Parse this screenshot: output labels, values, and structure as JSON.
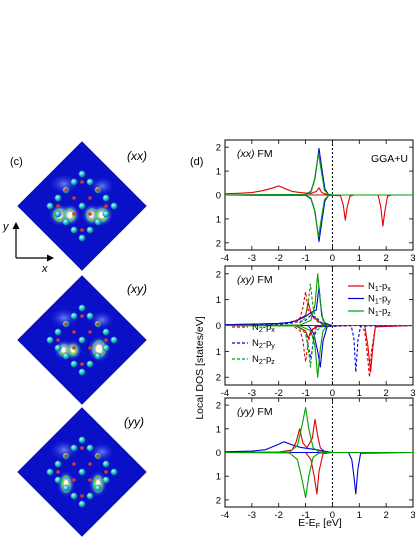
{
  "figure": {
    "panel_c_label": "(c)",
    "panel_d_label": "(d)",
    "maps": [
      {
        "label": "(xx)"
      },
      {
        "label": "(xy)"
      },
      {
        "label": "(yy)"
      }
    ],
    "axes_arrows": {
      "y": "y",
      "x": "x"
    },
    "colors": {
      "map_bg": "#0a10c8",
      "atom_cyan": "#22c4d8",
      "atom_red": "#d43a2a",
      "contour_green": "#3adc3a"
    }
  },
  "dos": {
    "ylabel": "Local DOS [states/eV]",
    "xlabel": "E-E",
    "xlabel_sub": "F",
    "xlabel_unit": " [eV]",
    "method": "GGA+U",
    "x_ticks": [
      "-4",
      "-3",
      "-2",
      "-1",
      "0",
      "1",
      "2",
      "3"
    ],
    "y_ticks": [
      "2",
      "1",
      "0",
      "1",
      "2"
    ],
    "legend_n1": [
      {
        "base": "N",
        "sub1": "1",
        "orb": "-p",
        "sub2": "x",
        "color": "#e00000"
      },
      {
        "base": "N",
        "sub1": "1",
        "orb": "-p",
        "sub2": "y",
        "color": "#0000dd"
      },
      {
        "base": "N",
        "sub1": "1",
        "orb": "-p",
        "sub2": "z",
        "color": "#00a000"
      }
    ],
    "legend_n2": [
      {
        "base": "N",
        "sub1": "2",
        "orb": "-p",
        "sub2": "x",
        "color": "#e00000"
      },
      {
        "base": "N",
        "sub1": "2",
        "orb": "-p",
        "sub2": "y",
        "color": "#0000dd"
      },
      {
        "base": "N",
        "sub1": "2",
        "orb": "-p",
        "sub2": "z",
        "color": "#00a000"
      }
    ]
  },
  "chart_data": [
    {
      "type": "line",
      "title": "(xx) FM",
      "xlim": [
        -4,
        3
      ],
      "ylim": [
        -2.3,
        2.3
      ],
      "series": [
        {
          "name": "N1-px",
          "color": "#e00000",
          "dash": false,
          "spin": "up",
          "x": [
            -4,
            -3.5,
            -3,
            -2.6,
            -2.2,
            -2.0,
            -1.8,
            -1.5,
            -1.2,
            -1.0,
            -0.8,
            -0.6,
            -0.5,
            -0.4,
            -0.2,
            0,
            3
          ],
          "y": [
            0.05,
            0.07,
            0.1,
            0.18,
            0.3,
            0.38,
            0.28,
            0.15,
            0.1,
            0.08,
            0.06,
            0.15,
            0.3,
            0.1,
            0.02,
            0,
            0
          ]
        },
        {
          "name": "N1-px",
          "color": "#e00000",
          "dash": false,
          "spin": "down",
          "x": [
            -4,
            -0.3,
            0.3,
            0.4,
            0.48,
            0.55,
            0.65,
            0.8,
            1.7,
            1.8,
            1.88,
            1.95,
            2.05,
            2.2,
            3
          ],
          "y": [
            0,
            0,
            0.03,
            0.4,
            1.05,
            0.5,
            0.05,
            0,
            0,
            0.5,
            1.3,
            0.7,
            0.05,
            0,
            0
          ]
        },
        {
          "name": "N1-py",
          "color": "#0000dd",
          "dash": false,
          "spin": "up",
          "x": [
            -4,
            -1.0,
            -0.8,
            -0.65,
            -0.5,
            -0.38,
            -0.28,
            -0.15,
            0,
            3
          ],
          "y": [
            0,
            0.02,
            0.15,
            0.7,
            1.95,
            1.0,
            0.25,
            0.03,
            0,
            0
          ]
        },
        {
          "name": "N1-py",
          "color": "#0000dd",
          "dash": false,
          "spin": "down",
          "x": [
            -4,
            -1.0,
            -0.8,
            -0.65,
            -0.5,
            -0.38,
            -0.28,
            -0.15,
            0,
            3
          ],
          "y": [
            0,
            0.02,
            0.15,
            0.7,
            1.95,
            1.0,
            0.25,
            0.03,
            0,
            0
          ]
        },
        {
          "name": "N1-pz",
          "color": "#00a000",
          "dash": false,
          "spin": "up",
          "x": [
            -4,
            -1.0,
            -0.8,
            -0.67,
            -0.52,
            -0.4,
            -0.3,
            -0.15,
            0,
            3
          ],
          "y": [
            0,
            0.02,
            0.12,
            0.6,
            1.75,
            0.9,
            0.2,
            0.03,
            0,
            0
          ]
        },
        {
          "name": "N1-pz",
          "color": "#00a000",
          "dash": false,
          "spin": "down",
          "x": [
            -4,
            -1.0,
            -0.8,
            -0.67,
            -0.52,
            -0.4,
            -0.3,
            -0.15,
            0,
            3
          ],
          "y": [
            0,
            0.02,
            0.12,
            0.6,
            1.75,
            0.9,
            0.2,
            0.03,
            0,
            0
          ]
        }
      ]
    },
    {
      "type": "line",
      "title": "(xy) FM",
      "xlim": [
        -4,
        3
      ],
      "ylim": [
        -2.3,
        2.3
      ],
      "series": [
        {
          "name": "N1-px",
          "color": "#e00000",
          "dash": false,
          "spin": "up",
          "x": [
            -4,
            -3,
            -2,
            -1.6,
            -1.3,
            -1.0,
            -0.9,
            -0.8,
            -0.7,
            -0.5,
            -0.3,
            0,
            3
          ],
          "y": [
            0.03,
            0.05,
            0.08,
            0.12,
            0.2,
            0.4,
            0.9,
            0.5,
            0.3,
            0.15,
            0.05,
            0,
            0
          ]
        },
        {
          "name": "N1-px",
          "color": "#e00000",
          "dash": false,
          "spin": "down",
          "x": [
            -4,
            -1.4,
            -1.0,
            -0.9,
            -0.8,
            -0.6,
            -0.3,
            1.2,
            1.32,
            1.42,
            1.5,
            1.6,
            3
          ],
          "y": [
            0,
            0,
            0.2,
            0.5,
            0.2,
            0.05,
            0,
            0,
            0.8,
            1.8,
            0.9,
            0.05,
            0
          ]
        },
        {
          "name": "N1-py",
          "color": "#0000dd",
          "dash": false,
          "spin": "up",
          "x": [
            -4,
            -3,
            -2,
            -1.6,
            -1.3,
            -1.0,
            -0.8,
            -0.6,
            -0.5,
            -0.4,
            -0.3,
            0,
            3
          ],
          "y": [
            0.03,
            0.05,
            0.08,
            0.12,
            0.2,
            0.35,
            0.5,
            0.6,
            1.5,
            0.4,
            0.1,
            0,
            0
          ]
        },
        {
          "name": "N1-py",
          "color": "#0000dd",
          "dash": false,
          "spin": "down",
          "x": [
            -4,
            -0.9,
            -0.7,
            -0.55,
            -0.45,
            -0.35,
            -0.2,
            0,
            3
          ],
          "y": [
            0,
            0,
            0.3,
            1.0,
            1.6,
            0.6,
            0.05,
            0,
            0
          ]
        },
        {
          "name": "N1-pz",
          "color": "#00a000",
          "dash": false,
          "spin": "up",
          "x": [
            -4,
            -1.2,
            -0.8,
            -0.65,
            -0.55,
            -0.45,
            -0.35,
            -0.2,
            0,
            3
          ],
          "y": [
            0,
            0.02,
            0.2,
            0.8,
            2.0,
            0.9,
            0.2,
            0.02,
            0,
            0
          ]
        },
        {
          "name": "N1-pz",
          "color": "#00a000",
          "dash": false,
          "spin": "down",
          "x": [
            -4,
            -1.2,
            -0.8,
            -0.65,
            -0.55,
            -0.45,
            -0.35,
            -0.2,
            0,
            3
          ],
          "y": [
            0,
            0.02,
            0.2,
            0.8,
            2.0,
            0.9,
            0.2,
            0.02,
            0,
            0
          ]
        },
        {
          "name": "N2-px",
          "color": "#e00000",
          "dash": true,
          "spin": "up",
          "x": [
            -4,
            -2,
            -1.5,
            -1.2,
            -1.1,
            -1.0,
            -0.9,
            -0.7,
            -0.5,
            0,
            3
          ],
          "y": [
            0,
            0.05,
            0.1,
            0.3,
            0.7,
            1.3,
            0.6,
            0.3,
            0.1,
            0,
            0
          ]
        },
        {
          "name": "N2-px",
          "color": "#e00000",
          "dash": true,
          "spin": "down",
          "x": [
            -4,
            -1.5,
            -1.2,
            -1.1,
            -1.0,
            -0.9,
            -0.7,
            1.0,
            1.2,
            1.3,
            1.38,
            1.45,
            1.6,
            3
          ],
          "y": [
            0,
            0,
            0.2,
            0.6,
            1.4,
            0.6,
            0.05,
            0,
            0.2,
            1.1,
            2.0,
            1.0,
            0.05,
            0
          ]
        },
        {
          "name": "N2-py",
          "color": "#0000dd",
          "dash": true,
          "spin": "up",
          "x": [
            -4,
            -2,
            -1.5,
            -1.0,
            -0.8,
            -0.6,
            -0.4,
            0,
            3
          ],
          "y": [
            0,
            0.05,
            0.1,
            0.2,
            0.4,
            0.3,
            0.1,
            0,
            0
          ]
        },
        {
          "name": "N2-py",
          "color": "#0000dd",
          "dash": true,
          "spin": "down",
          "x": [
            -4,
            -1.3,
            -1.0,
            -0.8,
            -0.7,
            -0.6,
            0.7,
            0.8,
            0.87,
            0.95,
            1.05,
            3
          ],
          "y": [
            0,
            0,
            0.3,
            1.3,
            0.5,
            0.05,
            0,
            0.5,
            1.8,
            0.6,
            0.02,
            0
          ]
        },
        {
          "name": "N2-pz",
          "color": "#00a000",
          "dash": true,
          "spin": "up",
          "x": [
            -4,
            -1.3,
            -1.0,
            -0.9,
            -0.82,
            -0.72,
            -0.6,
            -0.4,
            0,
            3
          ],
          "y": [
            0,
            0.02,
            0.3,
            0.9,
            1.6,
            0.7,
            0.2,
            0.05,
            0,
            0
          ]
        },
        {
          "name": "N2-pz",
          "color": "#00a000",
          "dash": true,
          "spin": "down",
          "x": [
            -4,
            -1.3,
            -1.0,
            -0.9,
            -0.82,
            -0.72,
            -0.6,
            -0.4,
            0,
            3
          ],
          "y": [
            0,
            0.02,
            0.3,
            0.9,
            1.6,
            0.7,
            0.2,
            0.05,
            0,
            0
          ]
        }
      ]
    },
    {
      "type": "line",
      "title": "(yy) FM",
      "xlim": [
        -4,
        3
      ],
      "ylim": [
        -2.3,
        2.3
      ],
      "series": [
        {
          "name": "N1-px",
          "color": "#e00000",
          "dash": false,
          "spin": "up",
          "x": [
            -4,
            -2,
            -1.5,
            -1.35,
            -1.22,
            -1.1,
            -0.95,
            -0.75,
            -0.65,
            -0.55,
            -0.45,
            -0.3,
            0,
            3
          ],
          "y": [
            0,
            0.02,
            0.1,
            0.45,
            1.0,
            0.4,
            0.2,
            0.6,
            1.4,
            0.7,
            0.2,
            0.05,
            0,
            0
          ]
        },
        {
          "name": "N1-px",
          "color": "#e00000",
          "dash": false,
          "spin": "down",
          "x": [
            -4,
            -1,
            -0.8,
            -0.68,
            -0.58,
            -0.5,
            -0.35,
            0,
            3
          ],
          "y": [
            0,
            0,
            0.3,
            1.0,
            1.75,
            0.8,
            0.05,
            0,
            0
          ]
        },
        {
          "name": "N1-py",
          "color": "#0000dd",
          "dash": false,
          "spin": "up",
          "x": [
            -4,
            -3,
            -2.5,
            -2.0,
            -1.8,
            -1.5,
            -1.2,
            -1.0,
            -0.8,
            -0.5,
            -0.3,
            0,
            3
          ],
          "y": [
            0.03,
            0.06,
            0.12,
            0.35,
            0.45,
            0.32,
            0.22,
            0.18,
            0.15,
            0.1,
            0.05,
            0,
            0
          ]
        },
        {
          "name": "N1-py",
          "color": "#0000dd",
          "dash": false,
          "spin": "down",
          "x": [
            -4,
            0.6,
            0.72,
            0.8,
            0.87,
            0.95,
            1.05,
            3
          ],
          "y": [
            0,
            0,
            0.3,
            1.0,
            1.75,
            0.7,
            0.03,
            0
          ]
        },
        {
          "name": "N1-pz",
          "color": "#00a000",
          "dash": false,
          "spin": "up",
          "x": [
            -4,
            -1.6,
            -1.3,
            -1.12,
            -1.0,
            -0.88,
            -0.72,
            -0.5,
            0,
            3
          ],
          "y": [
            0,
            0.02,
            0.3,
            1.2,
            1.9,
            1.0,
            0.2,
            0.03,
            0,
            0
          ]
        },
        {
          "name": "N1-pz",
          "color": "#00a000",
          "dash": false,
          "spin": "down",
          "x": [
            -4,
            -1.6,
            -1.3,
            -1.12,
            -1.0,
            -0.88,
            -0.72,
            -0.5,
            0,
            3
          ],
          "y": [
            0,
            0.02,
            0.3,
            1.2,
            1.9,
            1.0,
            0.2,
            0.03,
            0,
            0
          ]
        }
      ]
    }
  ]
}
